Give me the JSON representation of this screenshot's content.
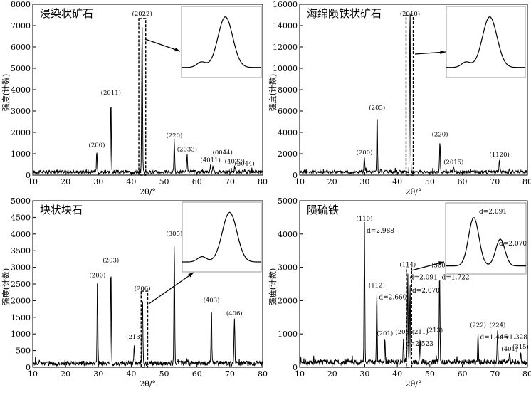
{
  "chart_data": [
    {
      "type": "line",
      "title": "浸染状矿石",
      "xlabel": "2θ/°",
      "ylabel": "强度(计数)",
      "xlim": [
        10,
        80
      ],
      "ylim": [
        0,
        8000
      ],
      "xticks": [
        10,
        20,
        30,
        40,
        50,
        60,
        70,
        80
      ],
      "yticks": [
        0,
        1000,
        2000,
        3000,
        4000,
        5000,
        6000,
        7000,
        8000
      ],
      "baseline": 150,
      "noise": 110,
      "peaks": [
        {
          "x": 29.5,
          "y": 1150,
          "w": 0.16
        },
        {
          "x": 33.8,
          "y": 3600,
          "w": 0.16
        },
        {
          "x": 43.3,
          "y": 7200,
          "w": 0.18
        },
        {
          "x": 53.1,
          "y": 1600,
          "w": 0.16
        },
        {
          "x": 57.0,
          "y": 950,
          "w": 0.16
        },
        {
          "x": 64.1,
          "y": 450,
          "w": 0.18
        },
        {
          "x": 64.9,
          "y": 450,
          "w": 0.18
        },
        {
          "x": 71.5,
          "y": 380,
          "w": 0.2
        },
        {
          "x": 74.5,
          "y": 280,
          "w": 0.2
        }
      ],
      "peak_labels": [
        {
          "label": "(200)",
          "x": 29.5,
          "y": 1150
        },
        {
          "label": "(2011)",
          "x": 33.8,
          "y": 3600
        },
        {
          "label": "(2022)",
          "x": 43.3,
          "y": 7200
        },
        {
          "label": "(220)",
          "x": 53.1,
          "y": 1600
        },
        {
          "label": "(2033)",
          "x": 57.0,
          "y": 950
        },
        {
          "label": "(4011)",
          "x": 64.1,
          "y": 450
        },
        {
          "label": "(0044)",
          "x": 67.8,
          "y": 800
        },
        {
          "label": "(4022)",
          "x": 71.5,
          "y": 380
        },
        {
          "label": "(2044)",
          "x": 74.5,
          "y": 280
        }
      ],
      "inset": "single",
      "zoom_box": [
        42.3,
        44.4
      ]
    },
    {
      "type": "line",
      "title": "海绵陨铁状矿石",
      "xlabel": "2θ/°",
      "ylabel": "强度(计数)",
      "xlim": [
        10,
        80
      ],
      "ylim": [
        0,
        16000
      ],
      "xticks": [
        10,
        20,
        30,
        40,
        50,
        60,
        70,
        80
      ],
      "yticks": [
        0,
        2000,
        4000,
        6000,
        8000,
        10000,
        12000,
        14000,
        16000
      ],
      "baseline": 300,
      "noise": 220,
      "peaks": [
        {
          "x": 29.9,
          "y": 1600,
          "w": 0.16
        },
        {
          "x": 33.8,
          "y": 5800,
          "w": 0.16
        },
        {
          "x": 43.9,
          "y": 16000,
          "w": 0.18
        },
        {
          "x": 53.1,
          "y": 3300,
          "w": 0.16
        },
        {
          "x": 57.3,
          "y": 700,
          "w": 0.2
        },
        {
          "x": 71.4,
          "y": 1400,
          "w": 0.18
        }
      ],
      "peak_labels": [
        {
          "label": "(200)",
          "x": 29.9,
          "y": 1600
        },
        {
          "label": "(205)",
          "x": 33.8,
          "y": 5800
        },
        {
          "label": "(2010)",
          "x": 43.9,
          "y": 16000
        },
        {
          "label": "(220)",
          "x": 53.1,
          "y": 3300
        },
        {
          "label": "(2015)",
          "x": 57.3,
          "y": 700
        },
        {
          "label": "(1120)",
          "x": 71.4,
          "y": 1400
        }
      ],
      "inset": "single",
      "zoom_box": [
        42.7,
        44.9
      ]
    },
    {
      "type": "line",
      "title": "块状块石",
      "xlabel": "2θ/°",
      "ylabel": "强度(计数)",
      "xlim": [
        10,
        80
      ],
      "ylim": [
        0,
        5000
      ],
      "xticks": [
        10,
        20,
        30,
        40,
        50,
        60,
        70,
        80
      ],
      "yticks": [
        0,
        500,
        1000,
        1500,
        2000,
        2500,
        3000,
        3500,
        4000,
        4500,
        5000
      ],
      "baseline": 120,
      "noise": 100,
      "peaks": [
        {
          "x": 29.7,
          "y": 2600,
          "w": 0.16
        },
        {
          "x": 33.8,
          "y": 3050,
          "w": 0.16
        },
        {
          "x": 40.9,
          "y": 750,
          "w": 0.16
        },
        {
          "x": 43.4,
          "y": 2200,
          "w": 0.18
        },
        {
          "x": 53.1,
          "y": 3850,
          "w": 0.16
        },
        {
          "x": 64.4,
          "y": 1850,
          "w": 0.16
        },
        {
          "x": 71.4,
          "y": 1450,
          "w": 0.18
        }
      ],
      "peak_labels": [
        {
          "label": "(200)",
          "x": 29.7,
          "y": 2600
        },
        {
          "label": "(203)",
          "x": 33.8,
          "y": 3050
        },
        {
          "label": "(213)",
          "x": 40.9,
          "y": 750
        },
        {
          "label": "(206)",
          "x": 43.4,
          "y": 2200
        },
        {
          "label": "(305)",
          "x": 53.1,
          "y": 3850
        },
        {
          "label": "(403)",
          "x": 64.4,
          "y": 1850
        },
        {
          "label": "(406)",
          "x": 71.4,
          "y": 1450
        }
      ],
      "inset": "single-left",
      "zoom_box": [
        43.0,
        45.0
      ]
    },
    {
      "type": "line",
      "title": "陨硫铁",
      "xlabel": "2θ/°",
      "ylabel": "强度(计数)",
      "xlim": [
        10,
        80
      ],
      "ylim": [
        0,
        5000
      ],
      "xticks": [
        10,
        20,
        30,
        40,
        50,
        60,
        70,
        80
      ],
      "yticks": [
        0,
        1000,
        2000,
        3000,
        4000,
        5000
      ],
      "baseline": 150,
      "noise": 110,
      "peaks": [
        {
          "x": 29.9,
          "y": 4300,
          "w": 0.16
        },
        {
          "x": 33.7,
          "y": 2300,
          "w": 0.16
        },
        {
          "x": 36.2,
          "y": 850,
          "w": 0.16
        },
        {
          "x": 41.9,
          "y": 900,
          "w": 0.16
        },
        {
          "x": 43.2,
          "y": 2900,
          "w": 0.16
        },
        {
          "x": 43.9,
          "y": 2500,
          "w": 0.16
        },
        {
          "x": 47.0,
          "y": 900,
          "w": 0.16
        },
        {
          "x": 53.0,
          "y": 2900,
          "w": 0.16
        },
        {
          "x": 64.8,
          "y": 1100,
          "w": 0.16
        },
        {
          "x": 70.8,
          "y": 1100,
          "w": 0.16
        },
        {
          "x": 74.5,
          "y": 380,
          "w": 0.18
        },
        {
          "x": 77.9,
          "y": 450,
          "w": 0.18
        }
      ],
      "peak_labels": [
        {
          "label": "(110)",
          "x": 29.9,
          "y": 4300
        },
        {
          "label": "(112)",
          "x": 33.7,
          "y": 2300
        },
        {
          "label": "(201)",
          "x": 36.2,
          "y": 850
        },
        {
          "label": "(203)",
          "x": 41.9,
          "y": 900
        },
        {
          "label": "(114)",
          "x": 43.2,
          "y": 2900
        },
        {
          "label": "(211)",
          "x": 47.0,
          "y": 900
        },
        {
          "label": "(300)",
          "x": 53.0,
          "y": 2900
        },
        {
          "label": "(213)",
          "x": 51.5,
          "y": 950
        },
        {
          "label": "(222)",
          "x": 64.8,
          "y": 1100
        },
        {
          "label": "(224)",
          "x": 70.8,
          "y": 1100
        },
        {
          "label": "(401)",
          "x": 74.5,
          "y": 380
        },
        {
          "label": "(315)",
          "x": 77.9,
          "y": 450
        }
      ],
      "d_labels": [
        {
          "label": "d=2.988",
          "x": 29.9,
          "y": 4300
        },
        {
          "label": "d=2.660",
          "x": 33.7,
          "y": 2300
        },
        {
          "label": "d=2.523",
          "x": 41.9,
          "y": 900
        },
        {
          "label": "d=2.091",
          "x": 43.2,
          "y": 2900
        },
        {
          "label": "d=2.070",
          "x": 43.9,
          "y": 2500
        },
        {
          "label": "d=1.722",
          "x": 53.0,
          "y": 2900
        },
        {
          "label": "d=1.446",
          "x": 64.8,
          "y": 1100
        },
        {
          "label": "d=1.328",
          "x": 70.8,
          "y": 1100
        }
      ],
      "inset": "double",
      "inset_labels": [
        "d=2.091",
        "d=2.070"
      ],
      "zoom_box": [
        42.8,
        44.4
      ]
    }
  ]
}
